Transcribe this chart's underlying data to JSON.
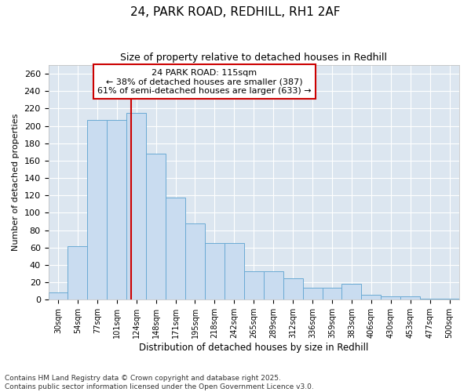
{
  "title_line1": "24, PARK ROAD, REDHILL, RH1 2AF",
  "title_line2": "Size of property relative to detached houses in Redhill",
  "xlabel": "Distribution of detached houses by size in Redhill",
  "ylabel": "Number of detached properties",
  "categories": [
    "30sqm",
    "54sqm",
    "77sqm",
    "101sqm",
    "124sqm",
    "148sqm",
    "171sqm",
    "195sqm",
    "218sqm",
    "242sqm",
    "265sqm",
    "289sqm",
    "312sqm",
    "336sqm",
    "359sqm",
    "383sqm",
    "406sqm",
    "430sqm",
    "453sqm",
    "477sqm",
    "500sqm"
  ],
  "values": [
    8,
    62,
    207,
    207,
    215,
    168,
    118,
    88,
    65,
    65,
    33,
    33,
    25,
    14,
    14,
    18,
    6,
    4,
    4,
    1,
    1
  ],
  "bar_color": "#c9dcf0",
  "bar_edge_color": "#6aaad4",
  "plot_bg_color": "#dce6f0",
  "fig_bg_color": "#ffffff",
  "grid_color": "#ffffff",
  "annotation_box_title": "24 PARK ROAD: 115sqm",
  "annotation_line2": "← 38% of detached houses are smaller (387)",
  "annotation_line3": "61% of semi-detached houses are larger (633) →",
  "vline_position": 3.75,
  "vline_color": "#cc0000",
  "annotation_box_edgecolor": "#cc0000",
  "ylim": [
    0,
    270
  ],
  "yticks": [
    0,
    20,
    40,
    60,
    80,
    100,
    120,
    140,
    160,
    180,
    200,
    220,
    240,
    260
  ],
  "footer_line1": "Contains HM Land Registry data © Crown copyright and database right 2025.",
  "footer_line2": "Contains public sector information licensed under the Open Government Licence v3.0."
}
